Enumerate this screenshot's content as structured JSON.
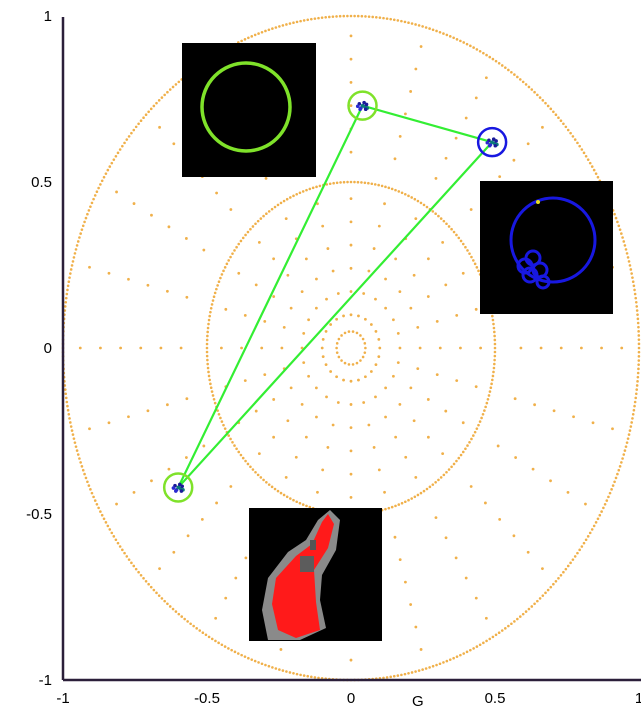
{
  "chart_data": {
    "type": "scatter",
    "title": "",
    "xlabel": "G",
    "ylabel": "",
    "xlim": [
      -1,
      1
    ],
    "ylim": [
      -1,
      1
    ],
    "x_ticks": [
      -1,
      -0.5,
      0,
      0.5,
      1
    ],
    "y_ticks": [
      1,
      0.5,
      0,
      -0.5,
      -1
    ],
    "x_tick_labels": [
      "-1",
      "-0.5",
      "0",
      "0.5",
      "1"
    ],
    "y_tick_labels": [
      "1",
      "0.5",
      "0",
      "-0.5",
      "-1"
    ],
    "grid": "polar dotted (rings at radius 0.05, 0.5, 1; radial spokes every 15 degrees)",
    "grid_color": "#f0b04a",
    "clusters": [
      {
        "x": 0.04,
        "y": 0.73,
        "ring_color": "#7fe22a"
      },
      {
        "x": 0.49,
        "y": 0.62,
        "ring_color": "#1818e0"
      },
      {
        "x": -0.6,
        "y": -0.42,
        "ring_color": "#7fe22a"
      }
    ],
    "connecting_lines": [
      {
        "from": [
          0.04,
          0.73
        ],
        "to": [
          0.49,
          0.62
        ]
      },
      {
        "from": [
          0.04,
          0.73
        ],
        "to": [
          -0.6,
          -0.42
        ]
      },
      {
        "from": [
          0.49,
          0.62
        ],
        "to": [
          -0.6,
          -0.42
        ]
      }
    ],
    "line_color": "#33ee33",
    "insets": [
      {
        "name": "green-circle-inset",
        "content": "single green ring on black"
      },
      {
        "name": "blue-circle-inset",
        "content": "blue ring with small blue loops on black"
      },
      {
        "name": "cell-mask-inset",
        "content": "red cell segmentation on grey/black"
      }
    ]
  },
  "colors": {
    "axis": "#2b1f3a",
    "green": "#7fe22a",
    "blue": "#1818e0",
    "red": "#ff0000"
  }
}
